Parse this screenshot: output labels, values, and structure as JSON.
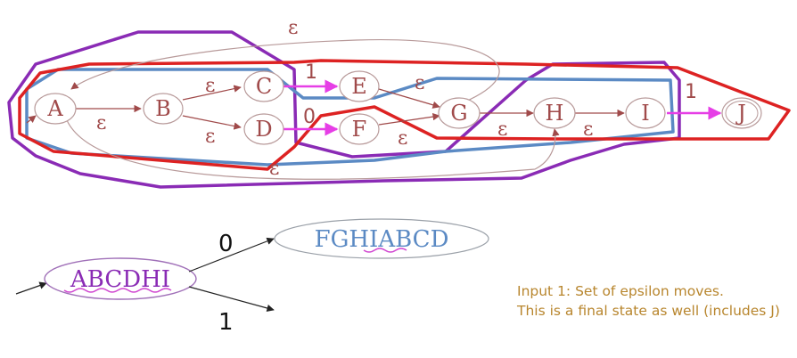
{
  "nfa": {
    "states": [
      "A",
      "B",
      "C",
      "D",
      "E",
      "F",
      "G",
      "H",
      "I",
      "J"
    ],
    "final_state": "J",
    "labels": {
      "eps": "ε",
      "one": "1",
      "zero": "0"
    }
  },
  "dfa": {
    "start": "ABCDHI",
    "target_on_0": "FGHIABCD",
    "edge_0": "0",
    "edge_1": "1"
  },
  "note": {
    "line1": "Input 1: Set of epsilon moves.",
    "line2": "This is a final state as well (includes J)"
  },
  "colors": {
    "state": "#a04a4a",
    "purple_group": "#8a2bb5",
    "blue_group": "#5b8ac4",
    "red_group": "#dd2222",
    "highlight_edge": "#e63ee6",
    "note_text": "#b8862e"
  }
}
